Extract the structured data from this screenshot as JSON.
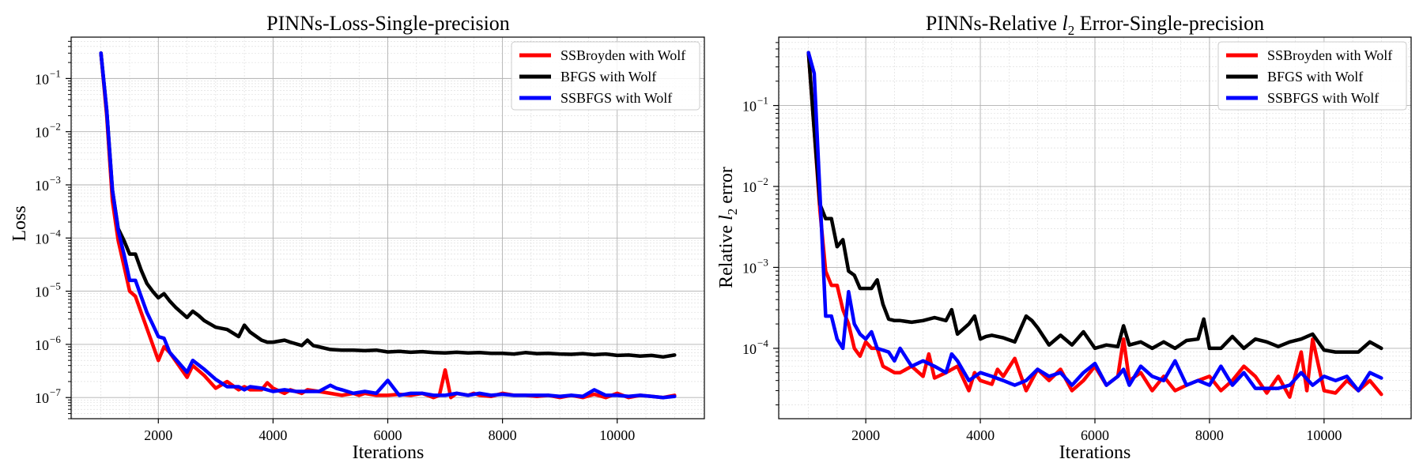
{
  "figure": {
    "description_colors": {
      "red": "#ff0000",
      "black": "#000000",
      "blue": "#0000ff"
    }
  },
  "chart_data": [
    {
      "type": "line",
      "title": "PINNs-Loss-Single-precision",
      "xlabel": "Iterations",
      "ylabel": "Loss",
      "yscale": "log",
      "xlim": [
        480,
        11520
      ],
      "ylim": [
        4e-08,
        0.6
      ],
      "xticks": [
        2000,
        4000,
        6000,
        8000,
        10000
      ],
      "yticks": [
        {
          "value": 1e-07,
          "base": "10",
          "exp": "−7"
        },
        {
          "value": 1e-06,
          "base": "10",
          "exp": "−6"
        },
        {
          "value": 1e-05,
          "base": "10",
          "exp": "−5"
        },
        {
          "value": 0.0001,
          "base": "10",
          "exp": "−4"
        },
        {
          "value": 0.001,
          "base": "10",
          "exp": "−3"
        },
        {
          "value": 0.01,
          "base": "10",
          "exp": "−2"
        },
        {
          "value": 0.1,
          "base": "10",
          "exp": "−1"
        }
      ],
      "legend": "top-right",
      "series": [
        {
          "name": "SSBroyden with Wolf",
          "color": "#ff0000",
          "x": [
            1000,
            1100,
            1200,
            1300,
            1400,
            1500,
            1600,
            1700,
            1800,
            2000,
            2100,
            2200,
            2500,
            2600,
            2800,
            3000,
            3200,
            3400,
            3500,
            3600,
            3800,
            3900,
            4000,
            4200,
            4300,
            4500,
            4600,
            4800,
            5000,
            5200,
            5400,
            5500,
            5600,
            5800,
            6000,
            6200,
            6400,
            6600,
            6800,
            6900,
            7000,
            7100,
            7200,
            7400,
            7500,
            7600,
            7800,
            8000,
            8200,
            8400,
            8600,
            8800,
            9000,
            9200,
            9400,
            9600,
            9800,
            10000,
            10200,
            10400,
            10600,
            10800,
            11000
          ],
          "y": [
            0.3,
            0.02,
            0.0005,
            9e-05,
            3e-05,
            1e-05,
            8e-06,
            4e-06,
            2e-06,
            5e-07,
            9e-07,
            7e-07,
            2.4e-07,
            4e-07,
            2.6e-07,
            1.5e-07,
            2e-07,
            1.4e-07,
            1.6e-07,
            1.4e-07,
            1.4e-07,
            1.9e-07,
            1.5e-07,
            1.2e-07,
            1.4e-07,
            1.2e-07,
            1.4e-07,
            1.3e-07,
            1.2e-07,
            1.1e-07,
            1.2e-07,
            1.1e-07,
            1.2e-07,
            1.1e-07,
            1.1e-07,
            1.15e-07,
            1.1e-07,
            1.2e-07,
            1e-07,
            1.1e-07,
            3.3e-07,
            1e-07,
            1.2e-07,
            1.1e-07,
            1.2e-07,
            1.1e-07,
            1.05e-07,
            1.2e-07,
            1.1e-07,
            1.1e-07,
            1.05e-07,
            1.1e-07,
            1e-07,
            1.1e-07,
            1e-07,
            1.15e-07,
            1e-07,
            1.2e-07,
            1e-07,
            1.1e-07,
            1.05e-07,
            1e-07,
            1.1e-07
          ]
        },
        {
          "name": "BFGS with Wolf",
          "color": "#000000",
          "x": [
            1000,
            1100,
            1200,
            1300,
            1400,
            1500,
            1600,
            1700,
            1800,
            1900,
            2000,
            2100,
            2200,
            2300,
            2400,
            2500,
            2600,
            2700,
            2800,
            3000,
            3200,
            3400,
            3500,
            3600,
            3800,
            3900,
            4000,
            4200,
            4300,
            4500,
            4600,
            4700,
            4800,
            5000,
            5200,
            5400,
            5600,
            5800,
            6000,
            6200,
            6400,
            6600,
            6800,
            7000,
            7200,
            7400,
            7600,
            7800,
            8000,
            8200,
            8400,
            8600,
            8800,
            9000,
            9200,
            9400,
            9600,
            9800,
            10000,
            10200,
            10400,
            10600,
            10800,
            11000
          ],
          "y": [
            0.3,
            0.025,
            0.0008,
            0.00015,
            9e-05,
            5e-05,
            5e-05,
            2.5e-05,
            1.4e-05,
            1e-05,
            7.5e-06,
            9e-06,
            6.5e-06,
            5e-06,
            4e-06,
            3.2e-06,
            4.2e-06,
            3.5e-06,
            2.8e-06,
            2.1e-06,
            1.9e-06,
            1.4e-06,
            2.3e-06,
            1.7e-06,
            1.2e-06,
            1.1e-06,
            1.1e-06,
            1.2e-06,
            1.1e-06,
            9.5e-07,
            1.2e-06,
            9.5e-07,
            9e-07,
            8e-07,
            7.8e-07,
            7.8e-07,
            7.6e-07,
            7.8e-07,
            7.2e-07,
            7.4e-07,
            7.1e-07,
            7.3e-07,
            7e-07,
            6.9e-07,
            7.1e-07,
            6.9e-07,
            7e-07,
            6.8e-07,
            6.8e-07,
            6.6e-07,
            7e-07,
            6.7e-07,
            6.8e-07,
            6.6e-07,
            6.5e-07,
            6.7e-07,
            6.4e-07,
            6.6e-07,
            6.2e-07,
            6.3e-07,
            6e-07,
            6.2e-07,
            5.8e-07,
            6.3e-07
          ]
        },
        {
          "name": "SSBFGS with Wolf",
          "color": "#0000ff",
          "x": [
            1000,
            1100,
            1200,
            1300,
            1400,
            1500,
            1600,
            1700,
            1800,
            1900,
            2000,
            2100,
            2200,
            2400,
            2500,
            2600,
            2800,
            3000,
            3200,
            3400,
            3500,
            3600,
            3800,
            4000,
            4200,
            4400,
            4600,
            4800,
            5000,
            5100,
            5200,
            5400,
            5600,
            5800,
            6000,
            6200,
            6400,
            6600,
            6800,
            7000,
            7200,
            7400,
            7600,
            7800,
            8000,
            8200,
            8400,
            8600,
            8800,
            9000,
            9200,
            9400,
            9600,
            9800,
            10000,
            10200,
            10400,
            10600,
            10800,
            11000
          ],
          "y": [
            0.3,
            0.025,
            0.0008,
            0.00014,
            5e-05,
            1.6e-05,
            1.6e-05,
            8e-06,
            4e-06,
            2.4e-06,
            1.4e-06,
            1.3e-06,
            7e-07,
            4e-07,
            3e-07,
            5e-07,
            3.4e-07,
            2.2e-07,
            1.6e-07,
            1.6e-07,
            1.4e-07,
            1.6e-07,
            1.5e-07,
            1.3e-07,
            1.4e-07,
            1.3e-07,
            1.3e-07,
            1.3e-07,
            1.7e-07,
            1.5e-07,
            1.4e-07,
            1.2e-07,
            1.3e-07,
            1.2e-07,
            2.1e-07,
            1.1e-07,
            1.2e-07,
            1.2e-07,
            1.1e-07,
            1.1e-07,
            1.2e-07,
            1.1e-07,
            1.2e-07,
            1.1e-07,
            1.15e-07,
            1.1e-07,
            1.1e-07,
            1.1e-07,
            1.1e-07,
            1.05e-07,
            1.1e-07,
            1.05e-07,
            1.4e-07,
            1.1e-07,
            1.1e-07,
            1.05e-07,
            1.1e-07,
            1.05e-07,
            1e-07,
            1.05e-07
          ]
        }
      ]
    },
    {
      "type": "line",
      "title": "PINNs-Relative l2 Error-Single-precision",
      "title_parts": {
        "pre": "PINNs-Relative ",
        "var": "l",
        "sub": "2",
        "post": " Error-Single-precision"
      },
      "xlabel": "Iterations",
      "ylabel": "Relative l2 error",
      "ylabel_parts": {
        "pre": "Relative ",
        "var": "l",
        "sub": "2",
        "post": " error"
      },
      "yscale": "log",
      "xlim": [
        480,
        11520
      ],
      "ylim": [
        1.35e-05,
        0.7
      ],
      "xticks": [
        2000,
        4000,
        6000,
        8000,
        10000
      ],
      "yticks": [
        {
          "value": 0.0001,
          "base": "10",
          "exp": "−4"
        },
        {
          "value": 0.001,
          "base": "10",
          "exp": "−3"
        },
        {
          "value": 0.01,
          "base": "10",
          "exp": "−2"
        },
        {
          "value": 0.1,
          "base": "10",
          "exp": "−1"
        }
      ],
      "legend": "top-right",
      "series": [
        {
          "name": "SSBroyden with Wolf",
          "color": "#ff0000",
          "x": [
            1000,
            1100,
            1200,
            1300,
            1400,
            1500,
            1600,
            1700,
            1800,
            1900,
            2000,
            2100,
            2200,
            2300,
            2400,
            2500,
            2600,
            2800,
            3000,
            3100,
            3200,
            3400,
            3600,
            3800,
            3900,
            4000,
            4200,
            4300,
            4400,
            4600,
            4800,
            5000,
            5200,
            5400,
            5600,
            5800,
            6000,
            6200,
            6400,
            6500,
            6600,
            6800,
            7000,
            7200,
            7400,
            7600,
            7800,
            8000,
            8200,
            8400,
            8600,
            8800,
            9000,
            9200,
            9400,
            9600,
            9700,
            9800,
            10000,
            10200,
            10400,
            10600,
            10800,
            11000
          ],
          "y": [
            0.45,
            0.05,
            0.005,
            0.0009,
            0.0006,
            0.0006,
            0.0003,
            0.0002,
            0.0001,
            8e-05,
            0.00012,
            0.0001,
            0.0001,
            6e-05,
            5.5e-05,
            5e-05,
            5e-05,
            6e-05,
            4.5e-05,
            8.5e-05,
            4.3e-05,
            5e-05,
            6e-05,
            3e-05,
            5e-05,
            4e-05,
            3.6e-05,
            5.5e-05,
            4.5e-05,
            7.5e-05,
            3e-05,
            5.5e-05,
            4e-05,
            5.5e-05,
            3e-05,
            4e-05,
            6e-05,
            3.5e-05,
            4.5e-05,
            0.00013,
            4e-05,
            5e-05,
            3e-05,
            4.5e-05,
            3e-05,
            3.5e-05,
            4e-05,
            4.5e-05,
            3e-05,
            4e-05,
            6e-05,
            4.5e-05,
            2.8e-05,
            4.5e-05,
            2.5e-05,
            9e-05,
            3e-05,
            0.00013,
            3e-05,
            2.8e-05,
            4e-05,
            3e-05,
            4e-05,
            2.7e-05
          ]
        },
        {
          "name": "BFGS with Wolf",
          "color": "#000000",
          "x": [
            1000,
            1100,
            1200,
            1300,
            1400,
            1500,
            1600,
            1700,
            1800,
            1900,
            2000,
            2100,
            2200,
            2300,
            2400,
            2500,
            2600,
            2800,
            3000,
            3200,
            3400,
            3500,
            3600,
            3800,
            3900,
            4000,
            4100,
            4200,
            4400,
            4600,
            4800,
            4900,
            5000,
            5200,
            5400,
            5600,
            5800,
            6000,
            6200,
            6400,
            6500,
            6600,
            6800,
            7000,
            7200,
            7400,
            7600,
            7800,
            7900,
            8000,
            8200,
            8400,
            8600,
            8800,
            9000,
            9200,
            9400,
            9600,
            9800,
            10000,
            10200,
            10400,
            10600,
            10800,
            11000
          ],
          "y": [
            0.45,
            0.05,
            0.006,
            0.004,
            0.004,
            0.0018,
            0.0022,
            0.0009,
            0.0008,
            0.00055,
            0.00055,
            0.00055,
            0.0007,
            0.00035,
            0.00023,
            0.00022,
            0.00022,
            0.00021,
            0.00022,
            0.00024,
            0.00022,
            0.0003,
            0.00015,
            0.0002,
            0.00025,
            0.00013,
            0.00014,
            0.000145,
            0.000135,
            0.00012,
            0.00025,
            0.00022,
            0.00018,
            0.00011,
            0.000145,
            0.00011,
            0.00016,
            0.0001,
            0.00011,
            0.000105,
            0.00019,
            0.00011,
            0.00012,
            0.0001,
            0.00012,
            0.0001,
            0.000125,
            0.00013,
            0.00023,
            0.0001,
            0.0001,
            0.00014,
            0.0001,
            0.00013,
            0.00012,
            0.000105,
            0.00012,
            0.00013,
            0.00015,
            9.5e-05,
            9e-05,
            9e-05,
            9e-05,
            0.00012,
            0.0001
          ]
        },
        {
          "name": "SSBFGS with Wolf",
          "color": "#0000ff",
          "x": [
            1000,
            1100,
            1200,
            1300,
            1400,
            1500,
            1600,
            1700,
            1800,
            1900,
            2000,
            2100,
            2200,
            2400,
            2500,
            2600,
            2800,
            3000,
            3200,
            3400,
            3500,
            3600,
            3800,
            4000,
            4200,
            4400,
            4600,
            4800,
            5000,
            5200,
            5400,
            5600,
            5800,
            6000,
            6200,
            6400,
            6500,
            6600,
            6800,
            7000,
            7200,
            7400,
            7600,
            7800,
            8000,
            8200,
            8400,
            8600,
            8800,
            9000,
            9200,
            9400,
            9600,
            9800,
            10000,
            10200,
            10400,
            10600,
            10800,
            11000
          ],
          "y": [
            0.45,
            0.25,
            0.008,
            0.00025,
            0.00025,
            0.00013,
            0.0001,
            0.0005,
            0.0002,
            0.00015,
            0.00013,
            0.00016,
            0.0001,
            9e-05,
            7e-05,
            0.0001,
            6e-05,
            7e-05,
            6e-05,
            5e-05,
            8.5e-05,
            7e-05,
            4e-05,
            5e-05,
            4.5e-05,
            4e-05,
            3.5e-05,
            4e-05,
            5.5e-05,
            4.5e-05,
            5e-05,
            3.5e-05,
            5e-05,
            6.5e-05,
            3.5e-05,
            4.5e-05,
            5.5e-05,
            3.5e-05,
            6e-05,
            4.5e-05,
            4e-05,
            7e-05,
            3.5e-05,
            4e-05,
            3.5e-05,
            6e-05,
            3.5e-05,
            5e-05,
            3.2e-05,
            3.2e-05,
            3.2e-05,
            3.5e-05,
            5e-05,
            3.5e-05,
            4.5e-05,
            4e-05,
            4.5e-05,
            3e-05,
            5e-05,
            4.3e-05
          ]
        }
      ]
    }
  ]
}
